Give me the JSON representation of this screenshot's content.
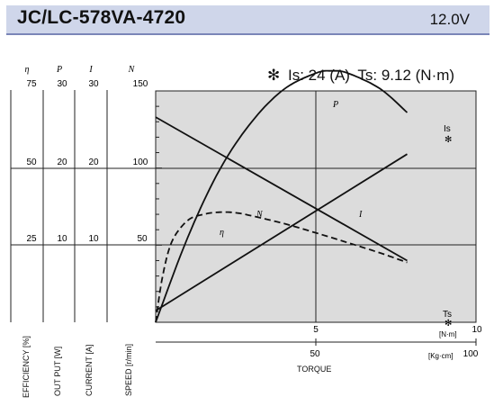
{
  "header": {
    "model": "JC/LC-578VA-4720",
    "voltage": "12.0V"
  },
  "stall": {
    "mark": "✻",
    "is_text": "Is: 24 (A)",
    "ts_text": "Ts: 9.12 (N·m)",
    "is_marker": "Is",
    "ts_marker": "Ts"
  },
  "left_axes": {
    "efficiency": {
      "symbol": "η",
      "ticks": [
        "75",
        "50",
        "25"
      ],
      "title": "EFFICIENCY [%]"
    },
    "output": {
      "symbol": "P",
      "ticks": [
        "30",
        "20",
        "10"
      ],
      "title": "OUT PUT [W]"
    },
    "current": {
      "symbol": "I",
      "ticks": [
        "30",
        "20",
        "10"
      ],
      "title": "CURRENT [A]"
    },
    "speed": {
      "symbol": "N",
      "ticks": [
        "150",
        "100",
        "50"
      ],
      "title": "SPEED [r/min]"
    }
  },
  "torque_axis": {
    "nm_ticks": [
      "5",
      "10"
    ],
    "nm_unit": "[N·m]",
    "kgcm_ticks": [
      "50",
      "100"
    ],
    "kgcm_unit": "[Kg·cm]",
    "title": "TORQUE"
  },
  "colors": {
    "plot_background": "#dcdcdc",
    "header_background": "#cfd6ea",
    "header_border": "#7a86b8"
  },
  "chart_data": {
    "type": "line",
    "x_unit": "N·m",
    "xlim": [
      0,
      10
    ],
    "speed_ylim": [
      0,
      150
    ],
    "grid": true,
    "series": [
      {
        "name": "N",
        "x": [
          0,
          7.85
        ],
        "y": [
          133,
          40
        ]
      },
      {
        "name": "I",
        "x": [
          0,
          7.85
        ],
        "y": [
          1.5,
          21.8
        ]
      },
      {
        "name": "P",
        "x": [
          0,
          1,
          2,
          3,
          4,
          5,
          5.5,
          6,
          7,
          7.85
        ],
        "y": [
          0,
          11,
          19.8,
          26,
          30.2,
          32.3,
          32.6,
          32.3,
          30.3,
          27.2
        ]
      },
      {
        "name": "η",
        "x": [
          0,
          0.2,
          0.5,
          1,
          1.5,
          2,
          2.5,
          3,
          4,
          5,
          6,
          7,
          7.85
        ],
        "y": [
          0,
          14,
          26,
          33,
          35,
          35.7,
          35.5,
          34.5,
          32,
          29,
          25.8,
          22.5,
          19.4
        ]
      }
    ]
  }
}
